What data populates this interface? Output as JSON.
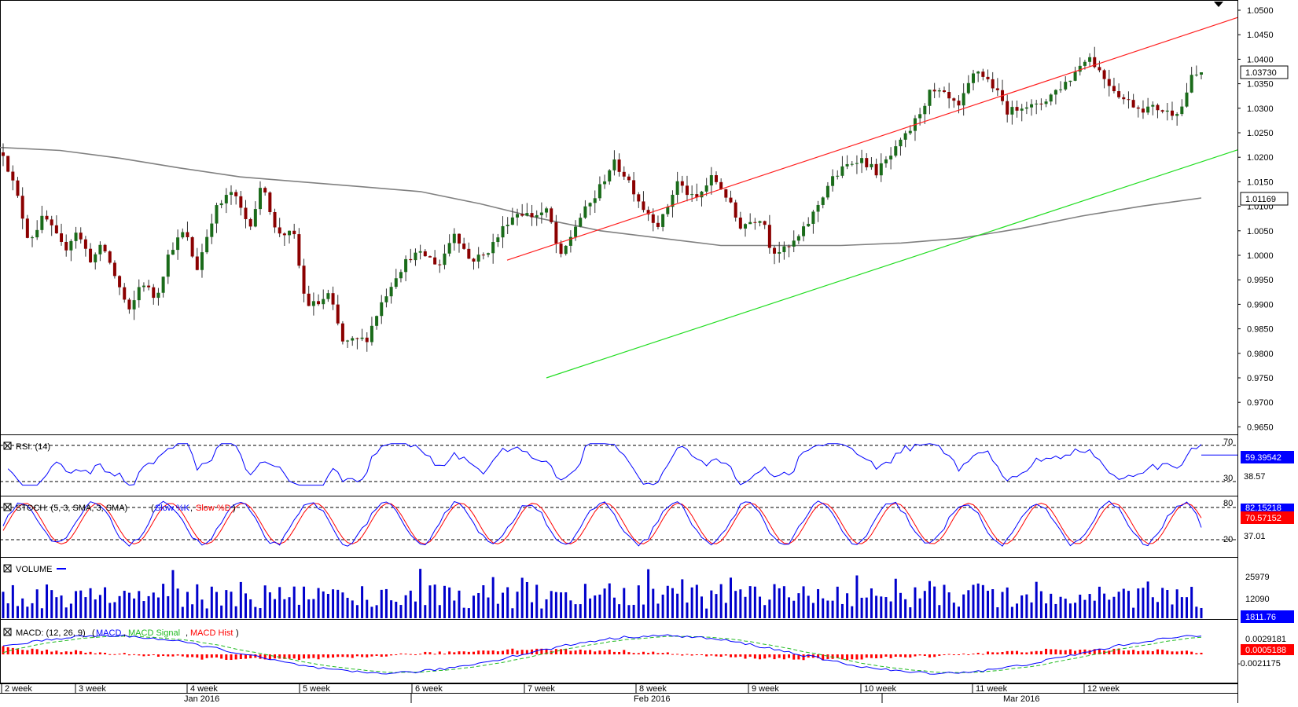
{
  "colors": {
    "candle_up": "#1a6b1a",
    "candle_down": "#8b0000",
    "resistance": "#ff2020",
    "support": "#22dd22",
    "ma": "#808080",
    "rsi": "#0000ff",
    "stoch_k": "#0000ff",
    "stoch_d": "#ff0000",
    "volume": "#0000cc",
    "macd": "#0000ff",
    "macd_signal": "#22bb22",
    "macd_hist": "#ff0000",
    "axis": "#000000",
    "bg": "#ffffff"
  },
  "price_axis": {
    "ticks": [
      "1.0500",
      "1.0450",
      "1.0400",
      "1.0350",
      "1.0300",
      "1.0250",
      "1.0200",
      "1.0150",
      "1.0100",
      "1.0050",
      "1.0000",
      "0.9950",
      "0.9900",
      "0.9850",
      "0.9800",
      "0.9750",
      "0.9700",
      "0.9650"
    ],
    "current_label": "1.03730",
    "ma_label": "1.01169"
  },
  "panels": {
    "rsi": {
      "title": "RSI: (14)",
      "levels": [
        "70",
        "30"
      ],
      "mid": "38.57",
      "value": "59.39542"
    },
    "stoch": {
      "title": "STOCH: (5, 3, SMA, 3, SMA)",
      "k_label": "Slow %K",
      "d_label": "Slow %D",
      "levels": [
        "80",
        "20"
      ],
      "mid": "37.01",
      "value_top": "82.15218",
      "value": "70.57152"
    },
    "volume": {
      "title": "VOLUME",
      "ticks": [
        "25979",
        "12090"
      ],
      "value": "1811.76"
    },
    "macd": {
      "title": "MACD: (12, 26, 9)",
      "macd_label": "MACD",
      "signal_label": "MACD Signal",
      "hist_label": "MACD Hist",
      "ticks": [
        "0.0029181",
        "-0.0021175"
      ],
      "value": "0.0005188"
    }
  },
  "x_axis": {
    "weeks": [
      "2 week",
      "3 week",
      "4 week",
      "5 week",
      "6 week",
      "7 week",
      "8 week",
      "9 week",
      "10 week",
      "11 week",
      "12 week"
    ],
    "months": [
      "Jan 2016",
      "Feb 2016",
      "Mar 2016"
    ]
  },
  "chart_data": {
    "type": "candlestick",
    "ylim": [
      0.9625,
      1.0515
    ],
    "n_bars": 248,
    "price_anchors": [
      [
        0,
        1.021
      ],
      [
        12,
        1.012
      ],
      [
        22,
        1.003
      ],
      [
        35,
        1.008
      ],
      [
        52,
        1.001
      ],
      [
        62,
        1.005
      ],
      [
        75,
        0.999
      ],
      [
        85,
        1.002
      ],
      [
        95,
        0.996
      ],
      [
        108,
        0.988
      ],
      [
        118,
        0.995
      ],
      [
        130,
        0.991
      ],
      [
        142,
        1.001
      ],
      [
        155,
        1.005
      ],
      [
        165,
        0.997
      ],
      [
        180,
        1.009
      ],
      [
        195,
        1.013
      ],
      [
        210,
        1.006
      ],
      [
        222,
        1.015
      ],
      [
        232,
        1.005
      ],
      [
        248,
        1.004
      ],
      [
        258,
        0.99
      ],
      [
        268,
        0.99
      ],
      [
        278,
        0.992
      ],
      [
        290,
        0.982
      ],
      [
        310,
        0.983
      ],
      [
        322,
        0.99
      ],
      [
        335,
        0.996
      ],
      [
        348,
        1.0
      ],
      [
        360,
        1.0
      ],
      [
        372,
        0.998
      ],
      [
        385,
        1.005
      ],
      [
        398,
        0.999
      ],
      [
        410,
        1.0
      ],
      [
        420,
        1.003
      ],
      [
        430,
        1.007
      ],
      [
        440,
        1.009
      ],
      [
        450,
        1.008
      ],
      [
        465,
        1.009
      ],
      [
        475,
        0.999
      ],
      [
        490,
        1.007
      ],
      [
        505,
        1.012
      ],
      [
        520,
        1.019
      ],
      [
        532,
        1.016
      ],
      [
        545,
        1.01
      ],
      [
        560,
        1.006
      ],
      [
        575,
        1.015
      ],
      [
        590,
        1.011
      ],
      [
        605,
        1.016
      ],
      [
        615,
        1.013
      ],
      [
        628,
        1.006
      ],
      [
        638,
        1.007
      ],
      [
        648,
        1.008
      ],
      [
        655,
        1.001
      ],
      [
        668,
        1.001
      ],
      [
        680,
        1.004
      ],
      [
        690,
        1.008
      ],
      [
        705,
        1.015
      ],
      [
        718,
        1.018
      ],
      [
        730,
        1.02
      ],
      [
        745,
        1.017
      ],
      [
        760,
        1.021
      ],
      [
        775,
        1.026
      ],
      [
        790,
        1.033
      ],
      [
        800,
        1.033
      ],
      [
        815,
        1.03
      ],
      [
        830,
        1.038
      ],
      [
        843,
        1.035
      ],
      [
        858,
        1.029
      ],
      [
        870,
        1.031
      ],
      [
        880,
        1.03
      ],
      [
        895,
        1.033
      ],
      [
        910,
        1.036
      ],
      [
        925,
        1.041
      ],
      [
        940,
        1.036
      ],
      [
        955,
        1.032
      ],
      [
        970,
        1.03
      ],
      [
        985,
        1.03
      ],
      [
        995,
        1.029
      ],
      [
        1005,
        1.03
      ],
      [
        1013,
        1.036
      ],
      [
        1022,
        1.0373
      ]
    ],
    "resistance_line": [
      [
        0.999,
        1.0485
      ]
    ],
    "support_line": [
      [
        0.975,
        1.0215
      ]
    ],
    "moving_average": [
      1.022,
      1.0214,
      1.0198,
      1.0178,
      1.016,
      1.015,
      1.014,
      1.013,
      1.0105,
      1.0075,
      1.005,
      1.0035,
      1.002,
      1.002,
      1.002,
      1.0025,
      1.0035,
      1.0055,
      1.008,
      1.01,
      1.0117
    ],
    "rsi_range": [
      30,
      70
    ],
    "stoch_range": [
      20,
      80
    ],
    "volume_range": [
      0,
      30000
    ],
    "macd_range": [
      -0.0045,
      0.0045
    ]
  }
}
